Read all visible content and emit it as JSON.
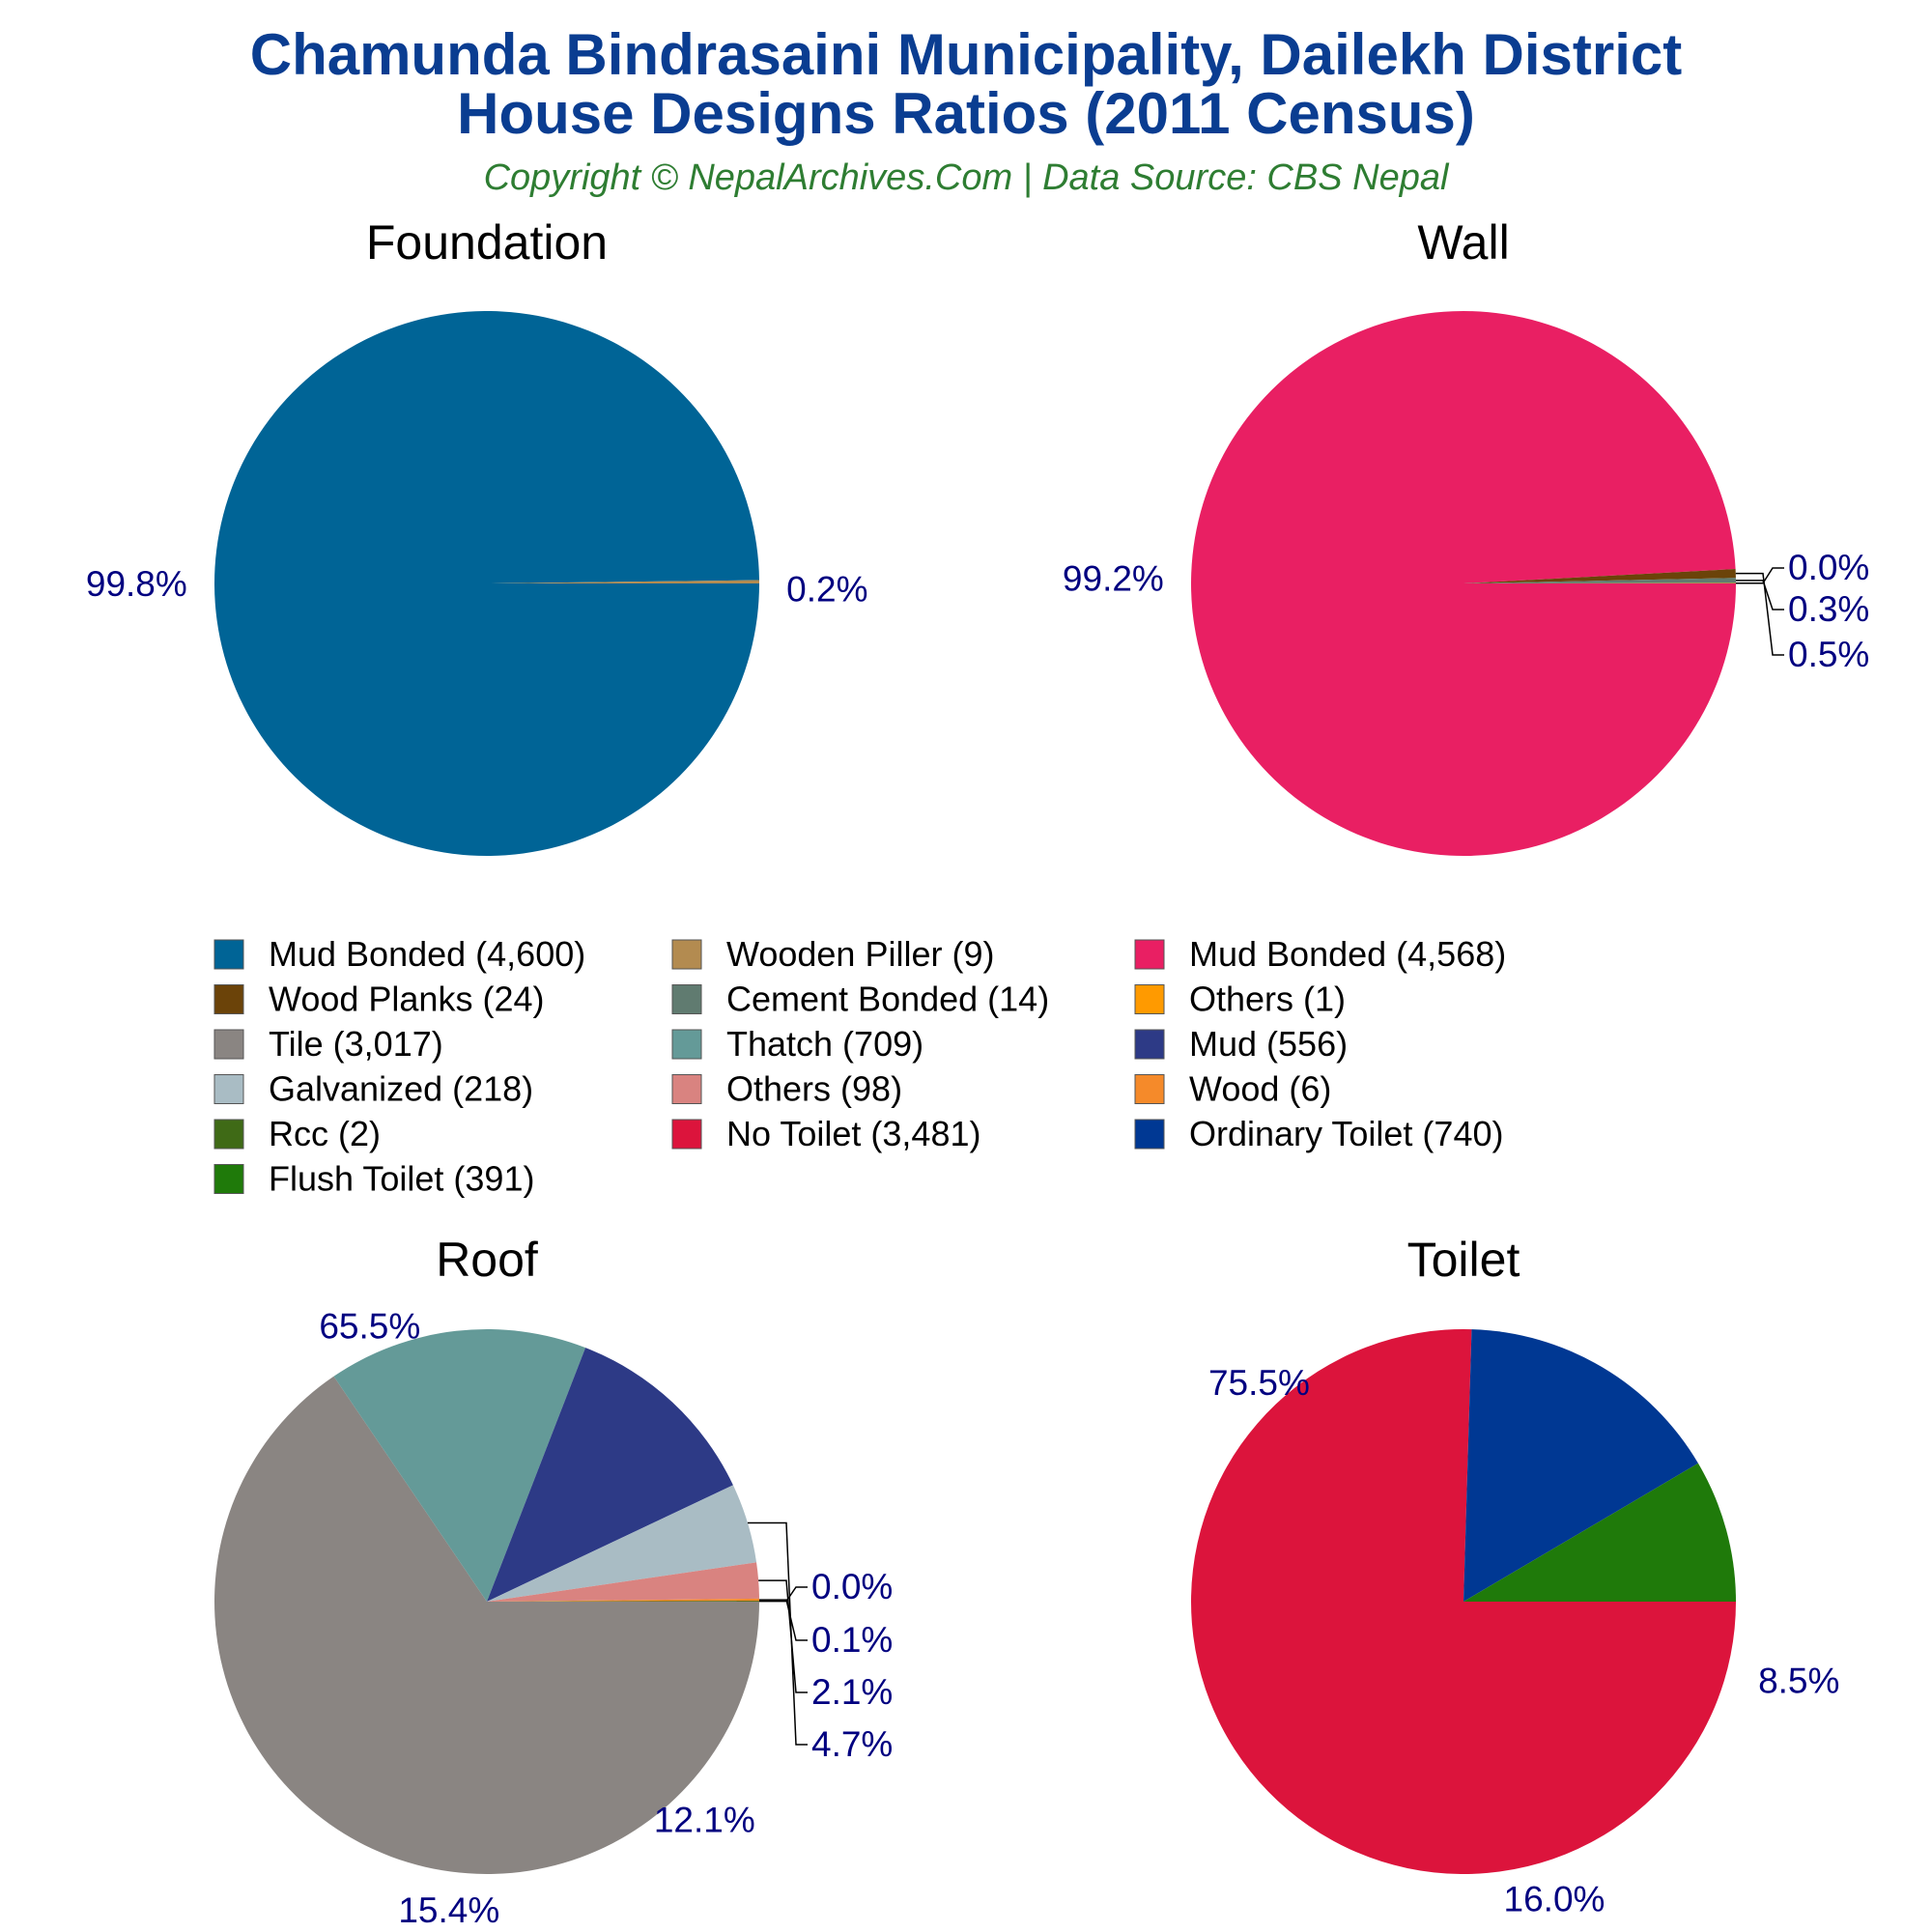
{
  "title_line1": "Chamunda Bindrasaini Municipality, Dailekh District",
  "title_line2": "House Designs Ratios (2011 Census)",
  "subtitle": "Copyright © NepalArchives.Com | Data Source: CBS Nepal",
  "label_color": "#000080",
  "chart_data": [
    {
      "type": "pie",
      "title": "Foundation",
      "slices": [
        {
          "label": "Mud Bonded",
          "value": 4600,
          "pct_label": "99.8%",
          "color": "#006496"
        },
        {
          "label": "Wooden Piller",
          "value": 9,
          "pct_label": "0.2%",
          "color": "#b38b50"
        }
      ]
    },
    {
      "type": "pie",
      "title": "Wall",
      "slices": [
        {
          "label": "Mud Bonded",
          "value": 4568,
          "pct_label": "99.2%",
          "color": "#e91f63"
        },
        {
          "label": "Wood Planks",
          "value": 24,
          "pct_label": "0.5%",
          "color": "#6b4309"
        },
        {
          "label": "Cement Bonded",
          "value": 14,
          "pct_label": "0.3%",
          "color": "#607b70"
        },
        {
          "label": "Others",
          "value": 1,
          "pct_label": "0.0%",
          "color": "#ff9a00"
        }
      ]
    },
    {
      "type": "pie",
      "title": "Roof",
      "slices": [
        {
          "label": "Tile",
          "value": 3017,
          "pct_label": "65.5%",
          "color": "#8a8582"
        },
        {
          "label": "Thatch",
          "value": 709,
          "pct_label": "15.4%",
          "color": "#649a98"
        },
        {
          "label": "Mud",
          "value": 556,
          "pct_label": "12.1%",
          "color": "#2d3a86"
        },
        {
          "label": "Galvanized",
          "value": 218,
          "pct_label": "4.7%",
          "color": "#a9bcc4"
        },
        {
          "label": "Others",
          "value": 98,
          "pct_label": "2.1%",
          "color": "#d98380"
        },
        {
          "label": "Wood",
          "value": 6,
          "pct_label": "0.1%",
          "color": "#f58a2a"
        },
        {
          "label": "Rcc",
          "value": 2,
          "pct_label": "0.0%",
          "color": "#3f6a16"
        }
      ]
    },
    {
      "type": "pie",
      "title": "Toilet",
      "slices": [
        {
          "label": "No Toilet",
          "value": 3481,
          "pct_label": "75.5%",
          "color": "#dc143c"
        },
        {
          "label": "Ordinary Toilet",
          "value": 740,
          "pct_label": "16.0%",
          "color": "#003893"
        },
        {
          "label": "Flush Toilet",
          "value": 391,
          "pct_label": "8.5%",
          "color": "#1f7a0a"
        }
      ]
    }
  ],
  "legend": [
    {
      "text": "Mud Bonded (4,600)",
      "color": "#006496"
    },
    {
      "text": "Wooden Piller (9)",
      "color": "#b38b50"
    },
    {
      "text": "Mud Bonded (4,568)",
      "color": "#e91f63"
    },
    {
      "text": "Wood Planks (24)",
      "color": "#6b4309"
    },
    {
      "text": "Cement Bonded (14)",
      "color": "#607b70"
    },
    {
      "text": "Others (1)",
      "color": "#ff9a00"
    },
    {
      "text": "Tile (3,017)",
      "color": "#8a8582"
    },
    {
      "text": "Thatch (709)",
      "color": "#649a98"
    },
    {
      "text": "Mud (556)",
      "color": "#2d3a86"
    },
    {
      "text": "Galvanized (218)",
      "color": "#a9bcc4"
    },
    {
      "text": "Others (98)",
      "color": "#d98380"
    },
    {
      "text": "Wood (6)",
      "color": "#f58a2a"
    },
    {
      "text": "Rcc (2)",
      "color": "#3f6a16"
    },
    {
      "text": "No Toilet (3,481)",
      "color": "#dc143c"
    },
    {
      "text": "Ordinary Toilet (740)",
      "color": "#003893"
    },
    {
      "text": "Flush Toilet (391)",
      "color": "#1f7a0a"
    }
  ]
}
